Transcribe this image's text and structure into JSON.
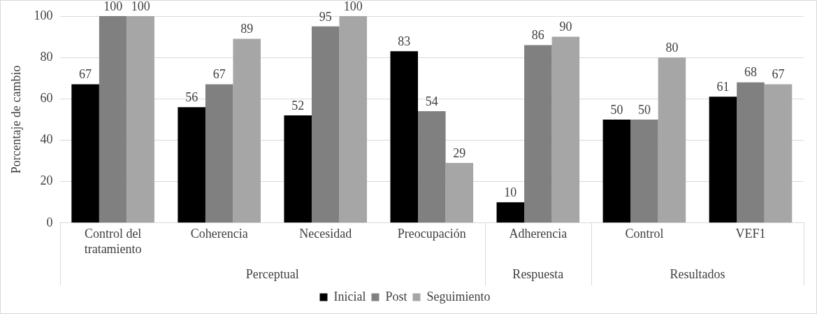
{
  "chart_data": {
    "type": "bar",
    "ylabel": "Porcentaje de cambio",
    "categories": [
      "Control del tratamiento",
      "Coherencia",
      "Necesidad",
      "Preocupación",
      "Adherencia",
      "Control",
      "VEF1"
    ],
    "series": [
      {
        "name": "Inicial",
        "color": "#000000",
        "values": [
          67,
          56,
          52,
          83,
          10,
          50,
          61
        ]
      },
      {
        "name": "Post",
        "color": "#808080",
        "values": [
          100,
          67,
          95,
          54,
          86,
          50,
          68
        ]
      },
      {
        "name": "Seguimiento",
        "color": "#a6a6a6",
        "values": [
          100,
          89,
          100,
          29,
          90,
          80,
          67
        ]
      }
    ],
    "annotations": [
      "Perceptual",
      "Respuesta",
      "Resultados"
    ],
    "ylim": [
      0,
      100
    ],
    "yticks": [
      0,
      20,
      40,
      60,
      80,
      100
    ],
    "grid": "y",
    "legend": "bottom",
    "data_labels": true
  }
}
